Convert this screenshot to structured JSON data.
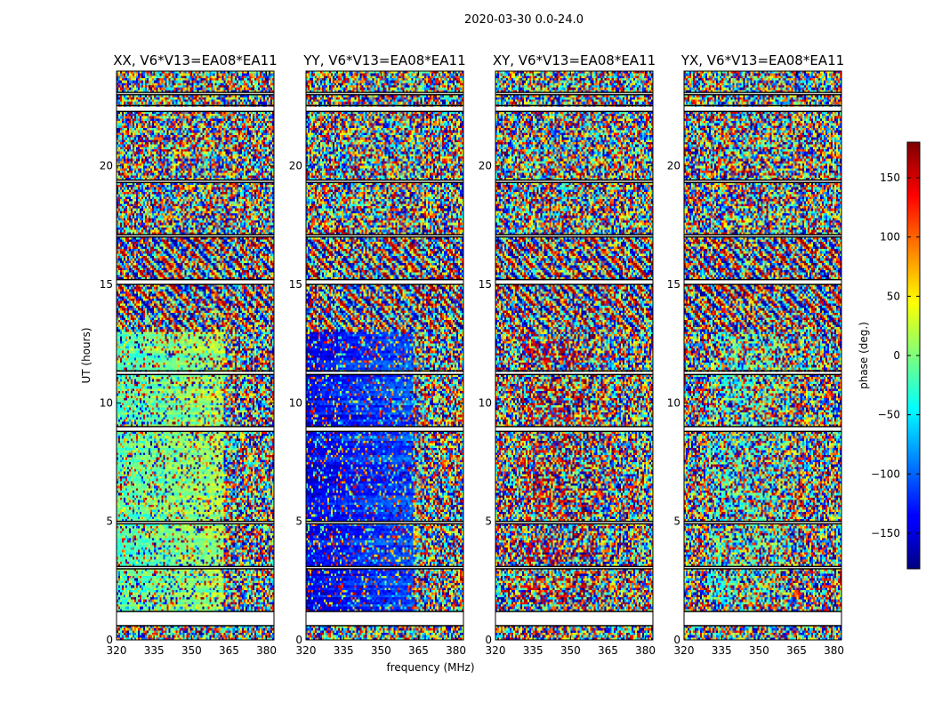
{
  "chart_data": {
    "type": "heatmap",
    "suptitle": "2020-03-30 0.0-24.0",
    "xlabel": "frequency (MHz)",
    "ylabel": "UT (hours)",
    "xlim": [
      320,
      383
    ],
    "ylim": [
      0,
      24
    ],
    "xticks": [
      320,
      335,
      350,
      365,
      380
    ],
    "xtick_labels": [
      "320",
      "335",
      "350",
      "365",
      "380"
    ],
    "yticks": [
      0,
      5,
      10,
      15,
      20
    ],
    "ytick_labels": [
      "0",
      "5",
      "10",
      "15",
      "20"
    ],
    "colorbar": {
      "label": "phase (deg.)",
      "range": [
        -180,
        180
      ],
      "ticks": [
        150,
        100,
        50,
        0,
        -50,
        -100,
        -150
      ],
      "tick_labels": [
        "150",
        "100",
        "50",
        "0",
        "−50",
        "−100",
        "−150"
      ]
    },
    "panels": [
      {
        "title": "XX, V6*V13=EA08*EA11",
        "coherent_phase_deg": -20,
        "coherent_band_mhz": [
          320,
          363
        ],
        "coherent_hours": [
          1.2,
          13.0
        ],
        "noise_level": 0.35
      },
      {
        "title": "YY, V6*V13=EA08*EA11",
        "coherent_phase_deg": -140,
        "coherent_band_mhz": [
          320,
          363
        ],
        "coherent_hours": [
          1.2,
          13.0
        ],
        "noise_level": 0.25
      },
      {
        "title": "XY, V6*V13=EA08*EA11",
        "coherent_phase_deg": 140,
        "coherent_band_mhz": [
          330,
          360
        ],
        "coherent_hours": [
          1.5,
          13.0
        ],
        "noise_level": 0.8
      },
      {
        "title": "YX, V6*V13=EA08*EA11",
        "coherent_phase_deg": -40,
        "coherent_band_mhz": [
          330,
          360
        ],
        "coherent_hours": [
          1.5,
          13.0
        ],
        "noise_level": 0.8
      }
    ],
    "flagged_hours": [
      [
        0.6,
        1.2
      ],
      [
        3.0,
        3.1
      ],
      [
        4.9,
        5.0
      ],
      [
        8.8,
        9.0
      ],
      [
        11.2,
        11.35
      ],
      [
        15.0,
        15.2
      ],
      [
        17.0,
        17.1
      ],
      [
        19.3,
        19.4
      ],
      [
        22.3,
        22.55
      ],
      [
        23.0,
        23.1
      ]
    ]
  }
}
